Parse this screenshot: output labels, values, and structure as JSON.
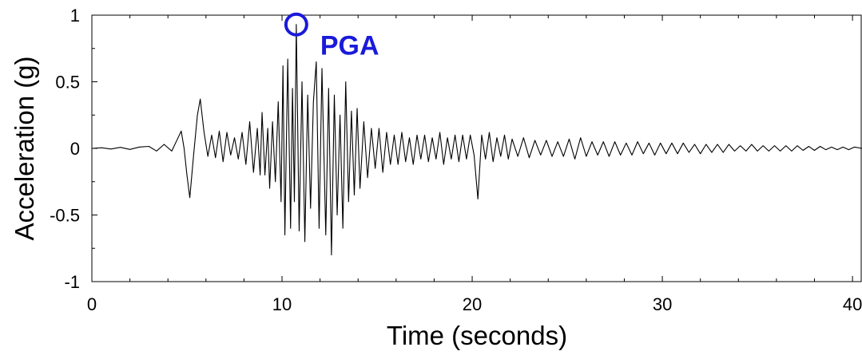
{
  "chart_data": {
    "type": "line",
    "xlabel": "Time (seconds)",
    "ylabel": "Acceleration (g)",
    "xlim": [
      0,
      40.5
    ],
    "ylim": [
      -1,
      1
    ],
    "x_ticks": [
      0,
      10,
      20,
      30,
      40
    ],
    "x_tick_labels": [
      "0",
      "10",
      "20",
      "30",
      "40"
    ],
    "y_ticks": [
      -1,
      -0.5,
      0,
      0.5,
      1
    ],
    "y_tick_labels": [
      "-1",
      "-0.5",
      "0",
      "0.5",
      "1"
    ],
    "grid": false,
    "series": [
      {
        "name": "",
        "color": "#000000",
        "points": [
          [
            0,
            0
          ],
          [
            0.5,
            0.005
          ],
          [
            1.0,
            -0.005
          ],
          [
            1.5,
            0.008
          ],
          [
            2.0,
            -0.008
          ],
          [
            2.5,
            0.01
          ],
          [
            3.0,
            0.015
          ],
          [
            3.4,
            -0.02
          ],
          [
            3.8,
            0.03
          ],
          [
            4.2,
            -0.02
          ],
          [
            4.5,
            0.07
          ],
          [
            4.7,
            0.13
          ],
          [
            4.85,
            0.0
          ],
          [
            5.0,
            -0.2
          ],
          [
            5.15,
            -0.37
          ],
          [
            5.35,
            -0.05
          ],
          [
            5.55,
            0.25
          ],
          [
            5.7,
            0.37
          ],
          [
            5.9,
            0.12
          ],
          [
            6.1,
            -0.06
          ],
          [
            6.3,
            0.1
          ],
          [
            6.5,
            -0.07
          ],
          [
            6.7,
            0.13
          ],
          [
            6.9,
            -0.1
          ],
          [
            7.1,
            0.12
          ],
          [
            7.3,
            -0.05
          ],
          [
            7.5,
            0.08
          ],
          [
            7.7,
            -0.08
          ],
          [
            7.9,
            0.12
          ],
          [
            8.1,
            -0.12
          ],
          [
            8.3,
            0.2
          ],
          [
            8.5,
            -0.18
          ],
          [
            8.7,
            0.15
          ],
          [
            8.85,
            -0.2
          ],
          [
            8.95,
            0.27
          ],
          [
            9.1,
            -0.2
          ],
          [
            9.25,
            0.15
          ],
          [
            9.35,
            -0.3
          ],
          [
            9.5,
            0.2
          ],
          [
            9.65,
            -0.25
          ],
          [
            9.8,
            0.35
          ],
          [
            9.95,
            -0.4
          ],
          [
            10.05,
            0.62
          ],
          [
            10.15,
            -0.65
          ],
          [
            10.3,
            0.67
          ],
          [
            10.45,
            -0.6
          ],
          [
            10.55,
            0.45
          ],
          [
            10.65,
            -0.4
          ],
          [
            10.75,
            0.93
          ],
          [
            10.9,
            -0.62
          ],
          [
            11.05,
            0.5
          ],
          [
            11.2,
            -0.7
          ],
          [
            11.35,
            0.4
          ],
          [
            11.5,
            -0.45
          ],
          [
            11.65,
            0.35
          ],
          [
            11.8,
            0.65
          ],
          [
            11.95,
            -0.6
          ],
          [
            12.1,
            0.6
          ],
          [
            12.3,
            -0.65
          ],
          [
            12.45,
            0.45
          ],
          [
            12.6,
            -0.8
          ],
          [
            12.75,
            0.4
          ],
          [
            12.9,
            -0.5
          ],
          [
            13.05,
            0.25
          ],
          [
            13.2,
            -0.6
          ],
          [
            13.35,
            0.5
          ],
          [
            13.5,
            -0.4
          ],
          [
            13.65,
            0.28
          ],
          [
            13.8,
            -0.35
          ],
          [
            13.95,
            0.3
          ],
          [
            14.1,
            -0.3
          ],
          [
            14.3,
            0.2
          ],
          [
            14.5,
            -0.22
          ],
          [
            14.7,
            0.15
          ],
          [
            14.9,
            -0.15
          ],
          [
            15.1,
            0.15
          ],
          [
            15.3,
            -0.18
          ],
          [
            15.5,
            0.12
          ],
          [
            15.7,
            -0.12
          ],
          [
            15.9,
            0.1
          ],
          [
            16.1,
            -0.12
          ],
          [
            16.3,
            0.12
          ],
          [
            16.5,
            -0.1
          ],
          [
            16.7,
            0.08
          ],
          [
            16.9,
            -0.12
          ],
          [
            17.1,
            0.1
          ],
          [
            17.3,
            -0.08
          ],
          [
            17.5,
            0.1
          ],
          [
            17.7,
            -0.1
          ],
          [
            17.9,
            0.08
          ],
          [
            18.1,
            -0.08
          ],
          [
            18.3,
            0.12
          ],
          [
            18.5,
            -0.12
          ],
          [
            18.7,
            0.08
          ],
          [
            18.9,
            -0.08
          ],
          [
            19.1,
            0.1
          ],
          [
            19.3,
            -0.1
          ],
          [
            19.5,
            0.1
          ],
          [
            19.7,
            -0.08
          ],
          [
            19.9,
            0.1
          ],
          [
            20.1,
            -0.05
          ],
          [
            20.3,
            -0.38
          ],
          [
            20.5,
            0.1
          ],
          [
            20.7,
            -0.08
          ],
          [
            20.9,
            0.12
          ],
          [
            21.1,
            -0.1
          ],
          [
            21.3,
            0.08
          ],
          [
            21.5,
            -0.06
          ],
          [
            21.7,
            0.1
          ],
          [
            21.9,
            -0.08
          ],
          [
            22.1,
            0.07
          ],
          [
            22.4,
            -0.06
          ],
          [
            22.7,
            0.08
          ],
          [
            23.0,
            -0.07
          ],
          [
            23.3,
            0.06
          ],
          [
            23.6,
            -0.05
          ],
          [
            23.9,
            0.06
          ],
          [
            24.2,
            -0.06
          ],
          [
            24.5,
            0.05
          ],
          [
            24.8,
            -0.06
          ],
          [
            25.1,
            0.07
          ],
          [
            25.4,
            -0.08
          ],
          [
            25.7,
            0.08
          ],
          [
            26.0,
            -0.06
          ],
          [
            26.3,
            0.05
          ],
          [
            26.6,
            -0.05
          ],
          [
            26.9,
            0.05
          ],
          [
            27.2,
            -0.06
          ],
          [
            27.5,
            0.05
          ],
          [
            27.8,
            -0.05
          ],
          [
            28.1,
            0.04
          ],
          [
            28.4,
            -0.05
          ],
          [
            28.7,
            0.05
          ],
          [
            29.0,
            -0.04
          ],
          [
            29.3,
            0.04
          ],
          [
            29.6,
            -0.05
          ],
          [
            29.9,
            0.04
          ],
          [
            30.2,
            -0.04
          ],
          [
            30.5,
            0.04
          ],
          [
            30.8,
            -0.04
          ],
          [
            31.1,
            0.04
          ],
          [
            31.4,
            -0.03
          ],
          [
            31.7,
            0.03
          ],
          [
            32.0,
            -0.04
          ],
          [
            32.3,
            0.03
          ],
          [
            32.6,
            -0.03
          ],
          [
            32.9,
            0.03
          ],
          [
            33.2,
            -0.03
          ],
          [
            33.5,
            0.03
          ],
          [
            33.8,
            -0.02
          ],
          [
            34.1,
            0.02
          ],
          [
            34.4,
            -0.02
          ],
          [
            34.7,
            0.03
          ],
          [
            35.0,
            -0.02
          ],
          [
            35.3,
            0.02
          ],
          [
            35.6,
            -0.02
          ],
          [
            35.9,
            0.02
          ],
          [
            36.2,
            -0.02
          ],
          [
            36.5,
            0.02
          ],
          [
            36.8,
            -0.02
          ],
          [
            37.1,
            0.02
          ],
          [
            37.4,
            -0.015
          ],
          [
            37.7,
            0.015
          ],
          [
            38.0,
            -0.015
          ],
          [
            38.3,
            0.015
          ],
          [
            38.6,
            -0.01
          ],
          [
            38.9,
            0.01
          ],
          [
            39.2,
            -0.01
          ],
          [
            39.5,
            0.01
          ],
          [
            39.8,
            -0.01
          ],
          [
            40.1,
            0.01
          ],
          [
            40.5,
            0.0
          ]
        ]
      }
    ],
    "annotations": [
      {
        "text": "PGA",
        "x": 10.75,
        "y": 0.93,
        "color": "#1a1adb"
      }
    ]
  }
}
